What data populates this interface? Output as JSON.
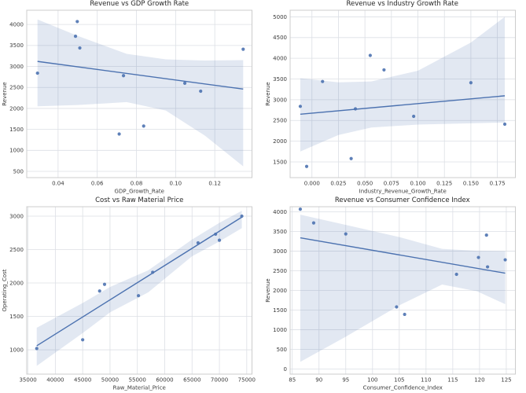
{
  "figure": {
    "background": "#ffffff",
    "accent_color": "#4c72b0",
    "point_color": "#4c72b0",
    "band_color": "rgba(76,114,176,0.16)",
    "grid_color": "#dcdfe5",
    "spine_color": "#cccccc",
    "title_color": "#262626",
    "tick_color": "#3a3a3a"
  },
  "chart_data": [
    {
      "type": "scatter",
      "title": "Revenue vs GDP Growth Rate",
      "xlabel": "GDP_Growth_Rate",
      "ylabel": "Revenue",
      "grid": true,
      "legend": null,
      "xlim": [
        0.024,
        0.139
      ],
      "ylim": [
        350,
        4340
      ],
      "xticks": [
        0.04,
        0.06,
        0.08,
        0.1,
        0.12
      ],
      "xtick_labels": [
        "0.04",
        "0.06",
        "0.08",
        "0.10",
        "0.12"
      ],
      "yticks": [
        500,
        1000,
        1500,
        2000,
        2500,
        3000,
        3500,
        4000
      ],
      "ytick_labels": [
        "500",
        "1000",
        "1500",
        "2000",
        "2500",
        "3000",
        "3500",
        "4000"
      ],
      "points": [
        [
          0.0295,
          2840
        ],
        [
          0.0489,
          3720
        ],
        [
          0.0498,
          4070
        ],
        [
          0.0511,
          3440
        ],
        [
          0.0712,
          1390
        ],
        [
          0.0734,
          2780
        ],
        [
          0.0837,
          1580
        ],
        [
          0.1047,
          2600
        ],
        [
          0.1128,
          2410
        ],
        [
          0.1345,
          3410
        ]
      ],
      "regression_line": {
        "x1": 0.0295,
        "y1": 3120,
        "x2": 0.1345,
        "y2": 2460
      },
      "confidence_band": {
        "x": [
          0.0295,
          0.05,
          0.075,
          0.095,
          0.115,
          0.1345
        ],
        "upper": [
          4120,
          3730,
          3300,
          3170,
          3140,
          3150
        ],
        "lower": [
          2050,
          2080,
          2150,
          1950,
          1350,
          620
        ]
      }
    },
    {
      "type": "scatter",
      "title": "Revenue vs Industry Growth Rate",
      "xlabel": "Industry_Revenue_Growth_Rate",
      "ylabel": "Revenue",
      "grid": true,
      "legend": null,
      "xlim": [
        -0.0206,
        0.192
      ],
      "ylim": [
        1120,
        5160
      ],
      "xticks": [
        0.0,
        0.025,
        0.05,
        0.075,
        0.1,
        0.125,
        0.15,
        0.175
      ],
      "xtick_labels": [
        "0.000",
        "0.025",
        "0.050",
        "0.075",
        "0.100",
        "0.125",
        "0.150",
        "0.175"
      ],
      "yticks": [
        1500,
        2000,
        2500,
        3000,
        3500,
        4000,
        4500,
        5000
      ],
      "ytick_labels": [
        "1500",
        "2000",
        "2500",
        "3000",
        "3500",
        "4000",
        "4500",
        "5000"
      ],
      "points": [
        [
          -0.011,
          2840
        ],
        [
          -0.005,
          1390
        ],
        [
          0.01,
          3440
        ],
        [
          0.037,
          1580
        ],
        [
          0.041,
          2780
        ],
        [
          0.055,
          4070
        ],
        [
          0.068,
          3720
        ],
        [
          0.096,
          2600
        ],
        [
          0.15,
          3410
        ],
        [
          0.182,
          2410
        ]
      ],
      "regression_line": {
        "x1": -0.011,
        "y1": 2650,
        "x2": 0.182,
        "y2": 3095
      },
      "confidence_band": {
        "x": [
          -0.011,
          0.025,
          0.056,
          0.1,
          0.15,
          0.182
        ],
        "upper": [
          3520,
          3420,
          3440,
          3700,
          4380,
          5000
        ],
        "lower": [
          1750,
          2150,
          2330,
          2400,
          2430,
          2450
        ]
      }
    },
    {
      "type": "scatter",
      "title": "Cost vs Raw Material Price",
      "xlabel": "Raw_Material_Price",
      "ylabel": "Operating_Cost",
      "grid": true,
      "legend": null,
      "xlim": [
        34770,
        75960
      ],
      "ylim": [
        636,
        3141
      ],
      "xticks": [
        35000,
        40000,
        45000,
        50000,
        55000,
        60000,
        65000,
        70000,
        75000
      ],
      "xtick_labels": [
        "35000",
        "40000",
        "45000",
        "50000",
        "55000",
        "60000",
        "65000",
        "70000",
        "75000"
      ],
      "yticks": [
        1000,
        1500,
        2000,
        2500,
        3000
      ],
      "ytick_labels": [
        "1000",
        "1500",
        "2000",
        "2500",
        "3000"
      ],
      "points": [
        [
          36600,
          1020
        ],
        [
          45000,
          1150
        ],
        [
          48100,
          1880
        ],
        [
          49000,
          1980
        ],
        [
          55200,
          1810
        ],
        [
          57800,
          2160
        ],
        [
          66100,
          2600
        ],
        [
          69300,
          2730
        ],
        [
          70000,
          2640
        ],
        [
          74100,
          3000
        ]
      ],
      "regression_line": {
        "x1": 36600,
        "y1": 1060,
        "x2": 74100,
        "y2": 2985
      },
      "confidence_band": {
        "x": [
          36600,
          45000,
          50000,
          57000,
          65000,
          70000,
          74100
        ],
        "upper": [
          1330,
          1700,
          1940,
          2190,
          2650,
          2900,
          3080
        ],
        "lower": [
          760,
          1250,
          1560,
          1860,
          2400,
          2620,
          2820
        ]
      }
    },
    {
      "type": "scatter",
      "title": "Revenue vs Consumer Confidence Index",
      "xlabel": "Consumer_Confidence_Index",
      "ylabel": "Revenue",
      "grid": true,
      "legend": null,
      "xlim": [
        84.6,
        126.7
      ],
      "ylim": [
        -133,
        4133
      ],
      "xticks": [
        85,
        90,
        95,
        100,
        105,
        110,
        115,
        120,
        125
      ],
      "xtick_labels": [
        "85",
        "90",
        "95",
        "100",
        "105",
        "110",
        "115",
        "120",
        "125"
      ],
      "yticks": [
        0,
        500,
        1000,
        1500,
        2000,
        2500,
        3000,
        3500,
        4000
      ],
      "ytick_labels": [
        "0",
        "500",
        "1000",
        "1500",
        "2000",
        "2500",
        "3000",
        "3500",
        "4000"
      ],
      "points": [
        [
          86.5,
          4070
        ],
        [
          89,
          3720
        ],
        [
          95,
          3440
        ],
        [
          104.5,
          1580
        ],
        [
          106,
          1390
        ],
        [
          115.7,
          2410
        ],
        [
          119.8,
          2840
        ],
        [
          121.3,
          3410
        ],
        [
          121.5,
          2600
        ],
        [
          124.8,
          2780
        ]
      ],
      "regression_line": {
        "x1": 86.5,
        "y1": 3340,
        "x2": 124.8,
        "y2": 2440
      },
      "confidence_band": {
        "x": [
          86.5,
          95,
          105,
          113,
          119.5,
          124.8
        ],
        "upper": [
          3930,
          3670,
          3360,
          3060,
          3010,
          3000
        ],
        "lower": [
          180,
          820,
          1620,
          2150,
          1980,
          1650
        ]
      }
    }
  ]
}
